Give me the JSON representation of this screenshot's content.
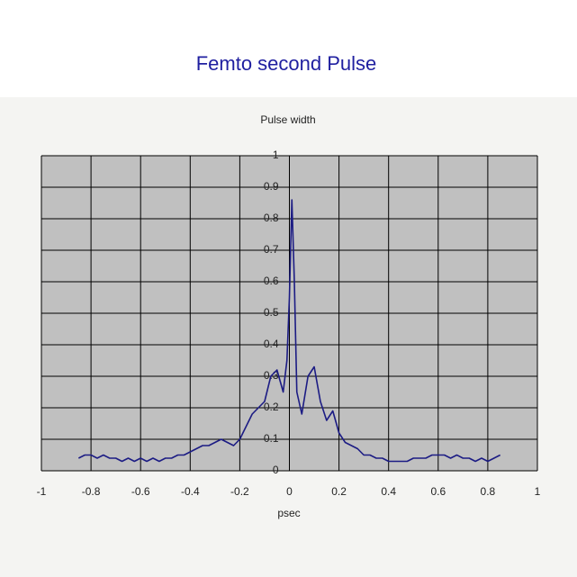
{
  "page_title": "Femto second Pulse",
  "chart_data": {
    "type": "line",
    "title": "Pulse width",
    "x_label": "psec",
    "x": [
      -0.85,
      -0.825,
      -0.8,
      -0.775,
      -0.75,
      -0.725,
      -0.7,
      -0.675,
      -0.65,
      -0.625,
      -0.6,
      -0.575,
      -0.55,
      -0.525,
      -0.5,
      -0.475,
      -0.45,
      -0.425,
      -0.4,
      -0.375,
      -0.35,
      -0.325,
      -0.3,
      -0.275,
      -0.25,
      -0.225,
      -0.2,
      -0.175,
      -0.15,
      -0.125,
      -0.1,
      -0.075,
      -0.05,
      -0.025,
      -0.01,
      0,
      0.01,
      0.02,
      0.03,
      0.05,
      0.075,
      0.1,
      0.125,
      0.15,
      0.175,
      0.2,
      0.225,
      0.25,
      0.275,
      0.3,
      0.325,
      0.35,
      0.375,
      0.4,
      0.425,
      0.45,
      0.475,
      0.5,
      0.525,
      0.55,
      0.575,
      0.6,
      0.625,
      0.65,
      0.675,
      0.7,
      0.725,
      0.75,
      0.775,
      0.8,
      0.825,
      0.85
    ],
    "values": [
      0.04,
      0.05,
      0.05,
      0.04,
      0.05,
      0.04,
      0.04,
      0.03,
      0.04,
      0.03,
      0.04,
      0.03,
      0.04,
      0.03,
      0.04,
      0.04,
      0.05,
      0.05,
      0.06,
      0.07,
      0.08,
      0.08,
      0.09,
      0.1,
      0.09,
      0.08,
      0.1,
      0.14,
      0.18,
      0.2,
      0.22,
      0.3,
      0.32,
      0.25,
      0.35,
      0.55,
      0.86,
      0.6,
      0.25,
      0.18,
      0.3,
      0.33,
      0.22,
      0.16,
      0.19,
      0.12,
      0.09,
      0.08,
      0.07,
      0.05,
      0.05,
      0.04,
      0.04,
      0.03,
      0.03,
      0.03,
      0.03,
      0.04,
      0.04,
      0.04,
      0.05,
      0.05,
      0.05,
      0.04,
      0.05,
      0.04,
      0.04,
      0.03,
      0.04,
      0.03,
      0.04,
      0.05
    ],
    "color": "#1c1c84",
    "xlim": [
      -1,
      1
    ],
    "xticks": [
      -1,
      -0.8,
      -0.6,
      -0.4,
      -0.2,
      0,
      0.2,
      0.4,
      0.6,
      0.8,
      1
    ],
    "ylim": [
      0,
      1
    ],
    "yticks": [
      0,
      0.1,
      0.2,
      0.3,
      0.4,
      0.5,
      0.6,
      0.7,
      0.8,
      0.9,
      1
    ],
    "grid": true
  }
}
